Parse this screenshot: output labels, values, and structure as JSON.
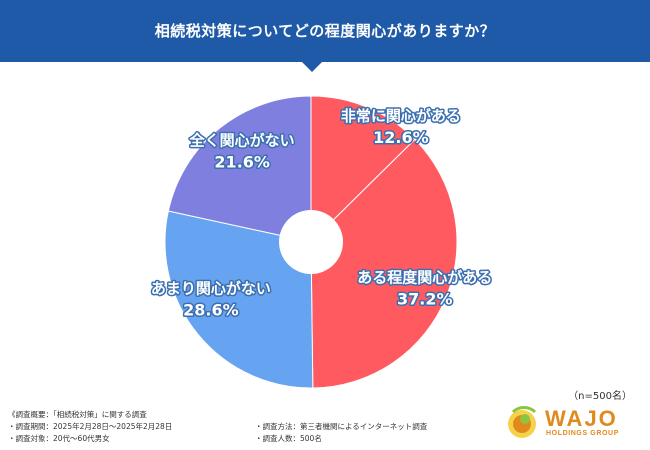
{
  "header": {
    "title": "相続税対策についてどの程度関心がありますか？",
    "color": "#1f5aa8"
  },
  "chart_data": {
    "type": "pie",
    "title": "相続税対策についてどの程度関心がありますか？",
    "start": "top",
    "direction": "clockwise",
    "donut_hole": true,
    "slices": [
      {
        "label": "非常に関心がある",
        "value": 12.6,
        "value_text": "12.6%",
        "color": "#ff5a5f"
      },
      {
        "label": "ある程度関心がある",
        "value": 37.2,
        "value_text": "37.2%",
        "color": "#ff5a5f"
      },
      {
        "label": "あまり関心がない",
        "value": 28.6,
        "value_text": "28.6%",
        "color": "#66a3f0"
      },
      {
        "label": "全く関心がない",
        "value": 21.6,
        "value_text": "21.6%",
        "color": "#7f7fe0"
      }
    ]
  },
  "sample_note": "（n=500名）",
  "footer": {
    "summary": "《調査概要：「相続税対策」に関する調査",
    "period": "・調査期間：2025年2月28日～2025年2月28日",
    "target": "・調査対象：20代～60代男女",
    "method": "・調査方法：第三者機関によるインターネット調査",
    "count": "・調査人数：500名"
  },
  "logo": {
    "name": "WAJO",
    "sub": "HOLDINGS GROUP",
    "icon": "wajo-logo-mark"
  }
}
